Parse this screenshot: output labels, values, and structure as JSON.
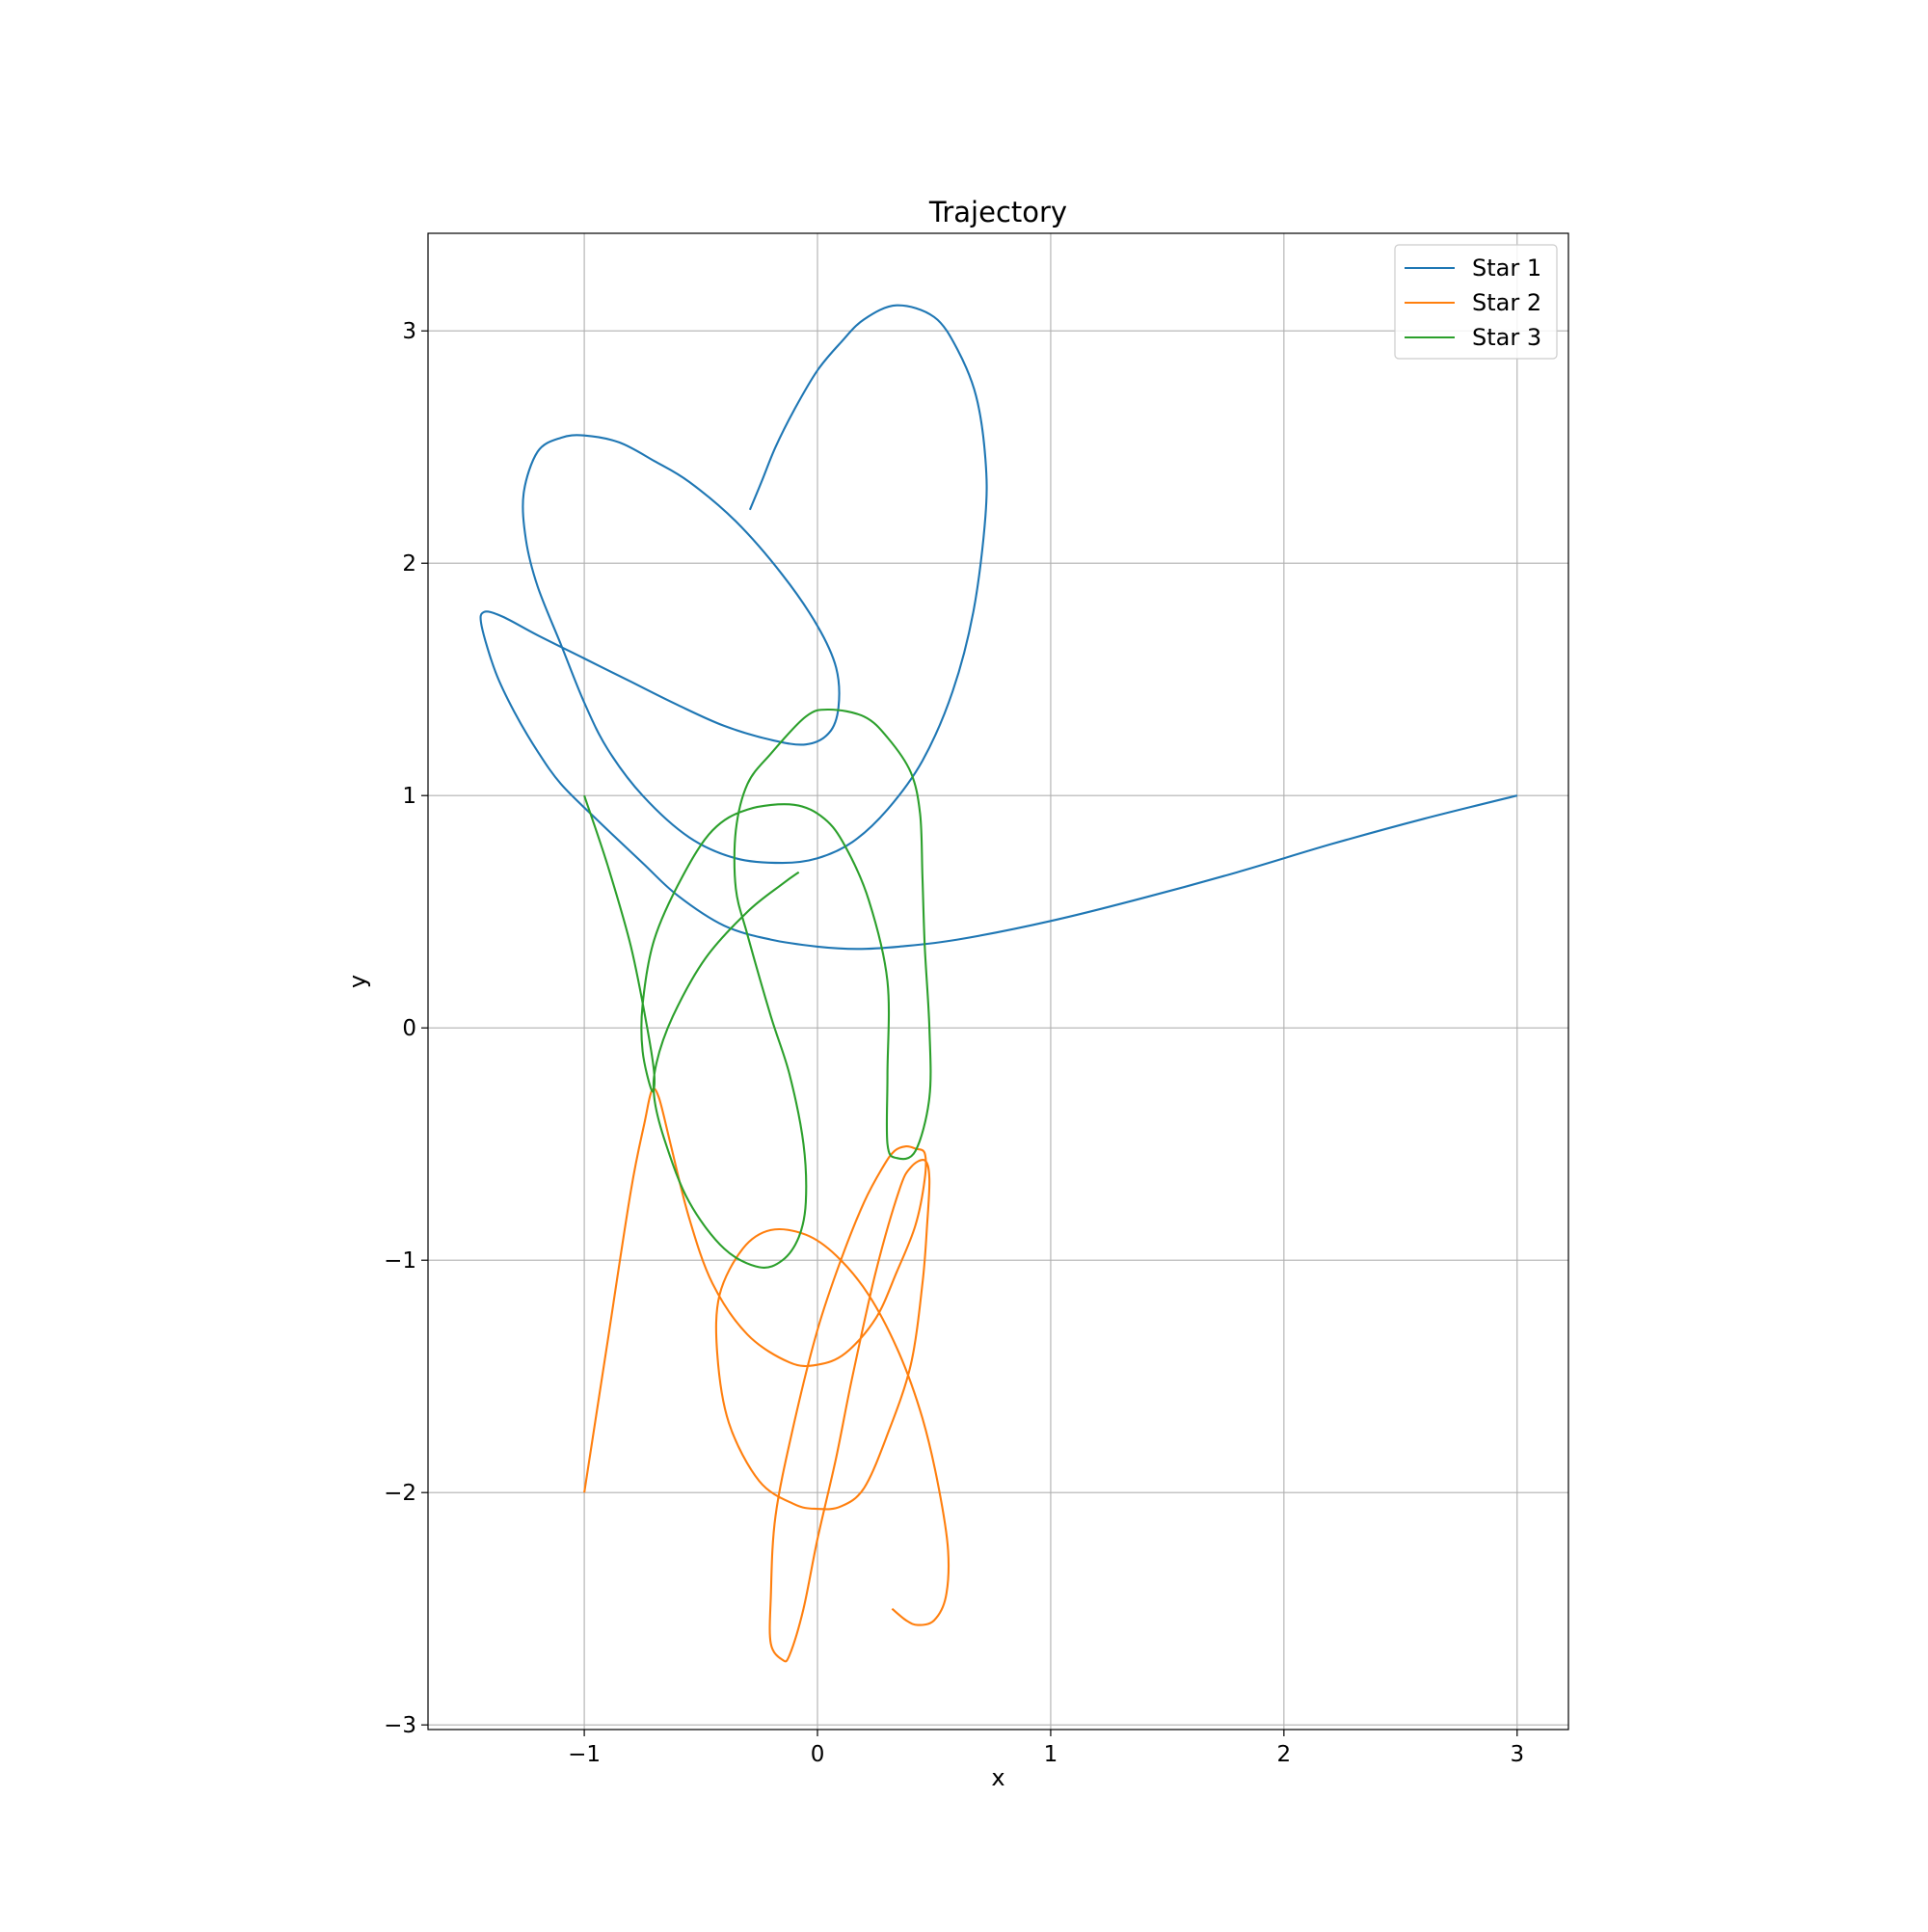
{
  "chart_data": {
    "type": "line",
    "title": "Trajectory",
    "xlabel": "x",
    "ylabel": "y",
    "xlim": [
      -1.67,
      3.22
    ],
    "ylim": [
      -3.02,
      3.42
    ],
    "xticks": [
      -1,
      0,
      1,
      2,
      3
    ],
    "xtick_labels": [
      "−1",
      "0",
      "1",
      "2",
      "3"
    ],
    "yticks": [
      -3,
      -2,
      -1,
      0,
      1,
      2,
      3
    ],
    "ytick_labels": [
      "−3",
      "−2",
      "−1",
      "0",
      "1",
      "2",
      "3"
    ],
    "grid": true,
    "legend_position": "top-right",
    "series": [
      {
        "name": "Star 1",
        "color": "#1f77b4",
        "x": [
          3.0,
          2.6,
          2.2,
          1.8,
          1.4,
          1.0,
          0.6,
          0.35,
          0.17,
          0.0,
          -0.2,
          -0.4,
          -0.6,
          -0.75,
          -0.95,
          -1.1,
          -1.2,
          -1.3,
          -1.38,
          -1.44,
          -1.43,
          -1.35,
          -1.2,
          -1.0,
          -0.8,
          -0.6,
          -0.4,
          -0.2,
          -0.05,
          0.05,
          0.09,
          0.08,
          0.0,
          -0.15,
          -0.35,
          -0.55,
          -0.7,
          -0.85,
          -1.0,
          -1.1,
          -1.2,
          -1.26,
          -1.25,
          -1.2,
          -1.1,
          -1.0,
          -0.9,
          -0.75,
          -0.55,
          -0.35,
          -0.15,
          0.0,
          0.15,
          0.3,
          0.45,
          0.58,
          0.67,
          0.72,
          0.72,
          0.68,
          0.6,
          0.5,
          0.34,
          0.2,
          0.1,
          0.0,
          -0.1,
          -0.18,
          -0.24,
          -0.29
        ],
        "y": [
          1.0,
          0.9,
          0.79,
          0.67,
          0.56,
          0.46,
          0.38,
          0.35,
          0.34,
          0.35,
          0.38,
          0.44,
          0.57,
          0.71,
          0.9,
          1.05,
          1.19,
          1.36,
          1.53,
          1.73,
          1.79,
          1.77,
          1.69,
          1.59,
          1.49,
          1.39,
          1.3,
          1.24,
          1.22,
          1.27,
          1.38,
          1.55,
          1.73,
          1.95,
          2.18,
          2.35,
          2.44,
          2.52,
          2.55,
          2.54,
          2.48,
          2.3,
          2.1,
          1.9,
          1.65,
          1.4,
          1.2,
          1.0,
          0.82,
          0.73,
          0.71,
          0.73,
          0.8,
          0.94,
          1.15,
          1.45,
          1.8,
          2.2,
          2.45,
          2.72,
          2.92,
          3.06,
          3.11,
          3.05,
          2.95,
          2.83,
          2.66,
          2.5,
          2.35,
          2.23
        ]
      },
      {
        "name": "Star 2",
        "color": "#ff7f0e",
        "x": [
          -1.0,
          -0.9,
          -0.8,
          -0.74,
          -0.71,
          -0.68,
          -0.63,
          -0.55,
          -0.45,
          -0.3,
          -0.12,
          0.0,
          0.12,
          0.25,
          0.34,
          0.42,
          0.46,
          0.46,
          0.42,
          0.38,
          0.33,
          0.28,
          0.2,
          0.1,
          0.0,
          -0.1,
          -0.18,
          -0.2,
          -0.2,
          -0.15,
          -0.12,
          -0.06,
          0.0,
          0.08,
          0.15,
          0.25,
          0.35,
          0.4,
          0.46,
          0.48,
          0.47,
          0.45,
          0.4,
          0.3,
          0.2,
          0.1,
          0.0,
          -0.1,
          -0.25,
          -0.38,
          -0.43,
          -0.42,
          -0.32,
          -0.2,
          -0.05,
          0.08,
          0.22,
          0.35,
          0.45,
          0.52,
          0.56,
          0.55,
          0.5,
          0.43,
          0.38,
          0.32
        ],
        "y": [
          -2.0,
          -1.35,
          -0.7,
          -0.4,
          -0.27,
          -0.3,
          -0.5,
          -0.82,
          -1.1,
          -1.32,
          -1.44,
          -1.45,
          -1.4,
          -1.25,
          -1.05,
          -0.85,
          -0.65,
          -0.54,
          -0.52,
          -0.51,
          -0.53,
          -0.6,
          -0.75,
          -1.0,
          -1.3,
          -1.7,
          -2.1,
          -2.45,
          -2.65,
          -2.72,
          -2.7,
          -2.5,
          -2.2,
          -1.85,
          -1.5,
          -1.05,
          -0.7,
          -0.6,
          -0.57,
          -0.65,
          -0.85,
          -1.1,
          -1.45,
          -1.75,
          -1.98,
          -2.06,
          -2.07,
          -2.05,
          -1.95,
          -1.7,
          -1.4,
          -1.15,
          -0.95,
          -0.87,
          -0.89,
          -0.98,
          -1.15,
          -1.4,
          -1.68,
          -1.98,
          -2.25,
          -2.45,
          -2.55,
          -2.57,
          -2.55,
          -2.5
        ]
      },
      {
        "name": "Star 3",
        "color": "#2ca02c",
        "x": [
          -1.0,
          -0.9,
          -0.8,
          -0.73,
          -0.7,
          -0.71,
          -0.75,
          -0.75,
          -0.7,
          -0.58,
          -0.45,
          -0.3,
          -0.1,
          0.03,
          0.12,
          0.22,
          0.3,
          0.3,
          0.3,
          0.34,
          0.42,
          0.48,
          0.48,
          0.46,
          0.45,
          0.44,
          0.4,
          0.3,
          0.2,
          0.05,
          -0.05,
          -0.2,
          -0.3,
          -0.35,
          -0.35,
          -0.3,
          -0.2,
          -0.12,
          -0.06,
          -0.05,
          -0.08,
          -0.15,
          -0.25,
          -0.4,
          -0.55,
          -0.65,
          -0.7,
          -0.69,
          -0.62,
          -0.48,
          -0.3,
          -0.15,
          -0.08
        ],
        "y": [
          1.0,
          0.7,
          0.35,
          0.0,
          -0.2,
          -0.27,
          -0.1,
          0.1,
          0.38,
          0.65,
          0.85,
          0.94,
          0.96,
          0.9,
          0.78,
          0.55,
          0.2,
          -0.2,
          -0.5,
          -0.56,
          -0.53,
          -0.3,
          0.0,
          0.35,
          0.65,
          0.92,
          1.1,
          1.25,
          1.34,
          1.37,
          1.34,
          1.18,
          1.05,
          0.85,
          0.6,
          0.4,
          0.05,
          -0.2,
          -0.5,
          -0.75,
          -0.9,
          -1.0,
          -1.03,
          -0.95,
          -0.75,
          -0.5,
          -0.3,
          -0.15,
          0.05,
          0.3,
          0.5,
          0.62,
          0.67
        ]
      }
    ]
  }
}
